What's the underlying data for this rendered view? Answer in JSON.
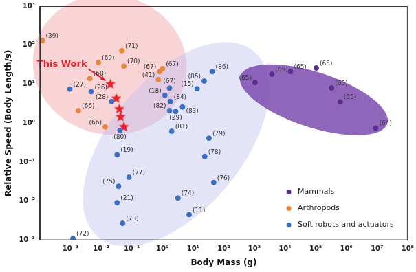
{
  "chart_data": {
    "type": "scatter",
    "x_label": "Body Mass (g)",
    "y_label": "Relative Speed (Body Length/s)",
    "log": true,
    "grid": false,
    "legend": "lower right",
    "xlim": [
      0.0001,
      100000000
    ],
    "ylim": [
      0.001,
      1000
    ],
    "xticks": [
      {
        "value": 0.001,
        "label": "10⁻³"
      },
      {
        "value": 0.01,
        "label": "10⁻²"
      },
      {
        "value": 0.1,
        "label": "10⁻¹"
      },
      {
        "value": 1,
        "label": "10⁰"
      },
      {
        "value": 10,
        "label": "10¹"
      },
      {
        "value": 100,
        "label": "10²"
      },
      {
        "value": 1000,
        "label": "10³"
      },
      {
        "value": 10000,
        "label": "10⁴"
      },
      {
        "value": 100000,
        "label": "10⁵"
      },
      {
        "value": 1000000,
        "label": "10⁶"
      },
      {
        "value": 10000000,
        "label": "10⁷"
      },
      {
        "value": 100000000,
        "label": "10⁸"
      }
    ],
    "yticks": [
      {
        "value": 0.001,
        "label": "10⁻³"
      },
      {
        "value": 0.01,
        "label": "10⁻²"
      },
      {
        "value": 0.1,
        "label": "10⁻¹"
      },
      {
        "value": 1,
        "label": "10⁰"
      },
      {
        "value": 10,
        "label": "10¹"
      },
      {
        "value": 100,
        "label": "10²"
      },
      {
        "value": 1000,
        "label": "10³"
      }
    ],
    "series": [
      {
        "name": "Mammals",
        "color": "#5b2d8e",
        "marker": "circle",
        "x": [
          1050,
          3700,
          15000,
          105000,
          330000,
          630000,
          9100000
        ],
        "values": [
          11,
          18,
          21,
          26,
          8,
          3.5,
          0.75
        ],
        "labels": [
          "(65)",
          "(65)",
          "(65)",
          "(65)",
          "(65)",
          "(65)",
          "(64)"
        ]
      },
      {
        "name": "Arthropods",
        "color": "#e8873a",
        "marker": "circle",
        "x": [
          0.00012,
          0.047,
          0.0081,
          0.055,
          0.81,
          1.0,
          0.73,
          0.0043,
          0.0018,
          0.0135
        ],
        "values": [
          130,
          72,
          36,
          29,
          21,
          25,
          13,
          14,
          2.1,
          0.8
        ],
        "labels": [
          "(39)",
          "(71)",
          "(69)",
          "(70)",
          "(67)",
          "(67)",
          "(41)",
          "(68)",
          "(66)",
          "(66)"
        ]
      },
      {
        "name": "Soft robots and actuators",
        "color": "#3a6fc4",
        "marker": "circle",
        "x": [
          0.00095,
          0.0047,
          0.022,
          0.041,
          0.033,
          0.081,
          0.037,
          0.033,
          0.05,
          0.0012,
          1.2,
          1.8,
          1.7,
          2.7,
          4.5,
          13.5,
          23,
          42,
          2.0,
          33,
          24,
          47,
          3.2,
          7.4,
          1.7
        ],
        "values": [
          7.5,
          6.4,
          3.6,
          0.65,
          0.155,
          0.041,
          0.024,
          0.0091,
          0.0027,
          0.0011,
          5.2,
          3.6,
          2.1,
          2.0,
          2.6,
          7.6,
          12,
          21,
          0.62,
          0.41,
          0.14,
          0.03,
          0.012,
          0.0045,
          7.9
        ],
        "labels": [
          "(27)",
          "(26)",
          "(28)",
          "(80)",
          "(19)",
          "(77)",
          "(75)",
          "(21)",
          "(73)",
          "(72)",
          "(18)",
          "(84)",
          "(82)",
          "(29)",
          "(83)",
          "(15)",
          "(85)",
          "(86)",
          "(81)",
          "(79)",
          "(78)",
          "(76)",
          "(74)",
          "(11)",
          "(67)"
        ]
      },
      {
        "annotation": "This Work",
        "color": "#e8202a",
        "marker": "star",
        "x": [
          0.02,
          0.031,
          0.039,
          0.043,
          0.055
        ],
        "values": [
          10,
          4.3,
          2.3,
          1.45,
          0.8
        ]
      }
    ]
  }
}
